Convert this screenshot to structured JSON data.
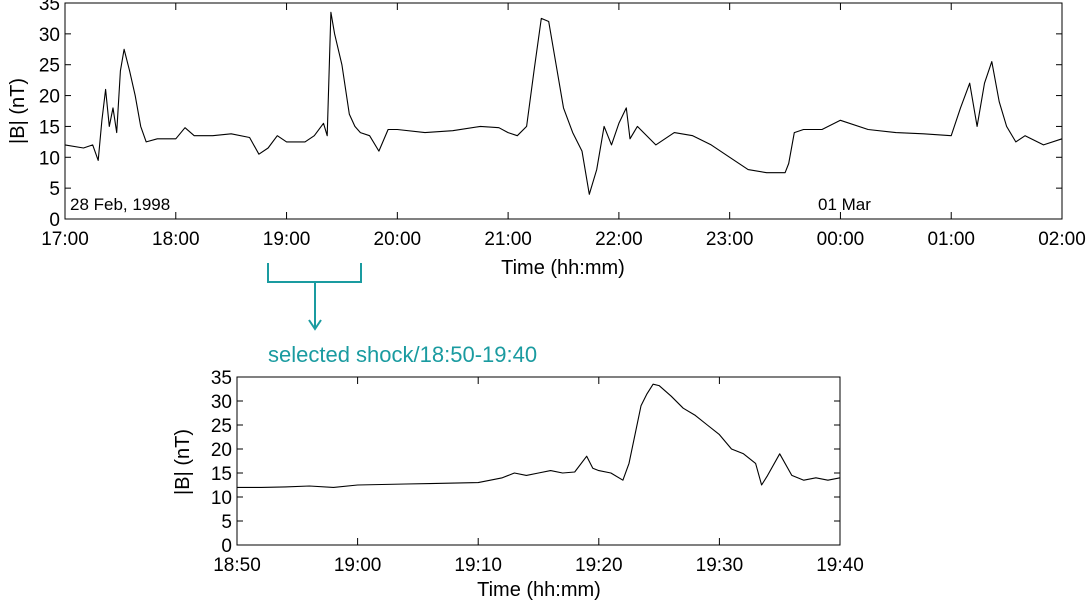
{
  "accent_color": "#1a9ba0",
  "callout": {
    "text": "selected shock/18:50-19:40"
  },
  "chart_data": [
    {
      "type": "line",
      "xlabel": "Time (hh:mm)",
      "ylabel": "|B| (nT)",
      "ylim": [
        0,
        35
      ],
      "xlim": [
        "17:00",
        "02:00"
      ],
      "yticks": [
        0,
        5,
        10,
        15,
        20,
        25,
        30,
        35
      ],
      "xticks": [
        "17:00",
        "18:00",
        "19:00",
        "20:00",
        "21:00",
        "22:00",
        "23:00",
        "00:00",
        "01:00",
        "02:00"
      ],
      "annotations": [
        "28 Feb, 1998",
        "01 Mar"
      ],
      "grid": false,
      "series": [
        {
          "points": [
            [
              "17:00",
              12
            ],
            [
              "17:10",
              11.5
            ],
            [
              "17:15",
              12
            ],
            [
              "17:18",
              9.5
            ],
            [
              "17:20",
              16
            ],
            [
              "17:22",
              21
            ],
            [
              "17:24",
              15
            ],
            [
              "17:26",
              18
            ],
            [
              "17:28",
              14
            ],
            [
              "17:30",
              24
            ],
            [
              "17:32",
              27.5
            ],
            [
              "17:35",
              24
            ],
            [
              "17:38",
              20
            ],
            [
              "17:41",
              15
            ],
            [
              "17:44",
              12.5
            ],
            [
              "17:50",
              13
            ],
            [
              "18:00",
              13
            ],
            [
              "18:05",
              14.8
            ],
            [
              "18:10",
              13.5
            ],
            [
              "18:20",
              13.5
            ],
            [
              "18:30",
              13.8
            ],
            [
              "18:40",
              13.2
            ],
            [
              "18:45",
              10.5
            ],
            [
              "18:50",
              11.5
            ],
            [
              "18:55",
              13.5
            ],
            [
              "19:00",
              12.5
            ],
            [
              "19:10",
              12.5
            ],
            [
              "19:15",
              13.5
            ],
            [
              "19:20",
              15.5
            ],
            [
              "19:22",
              13.5
            ],
            [
              "19:24",
              33.5
            ],
            [
              "19:26",
              30
            ],
            [
              "19:30",
              25
            ],
            [
              "19:34",
              17
            ],
            [
              "19:37",
              15
            ],
            [
              "19:40",
              14
            ],
            [
              "19:45",
              13.5
            ],
            [
              "19:50",
              11
            ],
            [
              "19:55",
              14.5
            ],
            [
              "20:00",
              14.5
            ],
            [
              "20:15",
              14
            ],
            [
              "20:30",
              14.3
            ],
            [
              "20:45",
              15
            ],
            [
              "20:55",
              14.8
            ],
            [
              "21:00",
              14
            ],
            [
              "21:05",
              13.5
            ],
            [
              "21:10",
              15
            ],
            [
              "21:14",
              24
            ],
            [
              "21:18",
              32.5
            ],
            [
              "21:22",
              32
            ],
            [
              "21:26",
              25
            ],
            [
              "21:30",
              18
            ],
            [
              "21:35",
              14
            ],
            [
              "21:40",
              11
            ],
            [
              "21:44",
              4
            ],
            [
              "21:48",
              8
            ],
            [
              "21:52",
              15
            ],
            [
              "21:56",
              12
            ],
            [
              "22:00",
              15.5
            ],
            [
              "22:04",
              18
            ],
            [
              "22:06",
              13
            ],
            [
              "22:10",
              15
            ],
            [
              "22:20",
              12
            ],
            [
              "22:30",
              14
            ],
            [
              "22:40",
              13.5
            ],
            [
              "22:50",
              12
            ],
            [
              "23:00",
              10
            ],
            [
              "23:10",
              8
            ],
            [
              "23:20",
              7.5
            ],
            [
              "23:30",
              7.5
            ],
            [
              "23:32",
              9
            ],
            [
              "23:35",
              14
            ],
            [
              "23:40",
              14.5
            ],
            [
              "23:50",
              14.5
            ],
            [
              "00:00",
              16
            ],
            [
              "00:15",
              14.5
            ],
            [
              "00:30",
              14
            ],
            [
              "00:45",
              13.8
            ],
            [
              "01:00",
              13.5
            ],
            [
              "01:05",
              18
            ],
            [
              "01:10",
              22
            ],
            [
              "01:14",
              15
            ],
            [
              "01:18",
              22
            ],
            [
              "01:22",
              25.5
            ],
            [
              "01:26",
              19
            ],
            [
              "01:30",
              15
            ],
            [
              "01:35",
              12.5
            ],
            [
              "01:40",
              13.5
            ],
            [
              "01:50",
              12
            ],
            [
              "02:00",
              13
            ]
          ]
        }
      ]
    },
    {
      "type": "line",
      "xlabel": "Time (hh:mm)",
      "ylabel": "|B| (nT)",
      "ylim": [
        0,
        35
      ],
      "xlim": [
        "18:50",
        "19:40"
      ],
      "yticks": [
        0,
        5,
        10,
        15,
        20,
        25,
        30,
        35
      ],
      "xticks": [
        "18:50",
        "19:00",
        "19:10",
        "19:20",
        "19:30",
        "19:40"
      ],
      "grid": false,
      "series": [
        {
          "points": [
            [
              "18:50",
              12
            ],
            [
              "18:52",
              12
            ],
            [
              "18:54",
              12.1
            ],
            [
              "18:56",
              12.3
            ],
            [
              "18:58",
              12
            ],
            [
              "19:00",
              12.5
            ],
            [
              "19:02",
              12.6
            ],
            [
              "19:04",
              12.7
            ],
            [
              "19:06",
              12.8
            ],
            [
              "19:08",
              12.9
            ],
            [
              "19:10",
              13
            ],
            [
              "19:11",
              13.5
            ],
            [
              "19:12",
              14
            ],
            [
              "19:13",
              15
            ],
            [
              "19:14",
              14.5
            ],
            [
              "19:15",
              15
            ],
            [
              "19:16",
              15.5
            ],
            [
              "19:17",
              15
            ],
            [
              "19:18",
              15.2
            ],
            [
              "19:19",
              18.5
            ],
            [
              "19:19.5",
              16
            ],
            [
              "19:20",
              15.5
            ],
            [
              "19:21",
              15
            ],
            [
              "19:22",
              13.5
            ],
            [
              "19:22.5",
              17
            ],
            [
              "19:23",
              23
            ],
            [
              "19:23.5",
              29
            ],
            [
              "19:24",
              31.5
            ],
            [
              "19:24.5",
              33.5
            ],
            [
              "19:25",
              33.2
            ],
            [
              "19:26",
              31
            ],
            [
              "19:27",
              28.5
            ],
            [
              "19:28",
              27
            ],
            [
              "19:29",
              25
            ],
            [
              "19:30",
              23
            ],
            [
              "19:31",
              20
            ],
            [
              "19:32",
              19
            ],
            [
              "19:33",
              17
            ],
            [
              "19:33.5",
              12.5
            ],
            [
              "19:34",
              14.5
            ],
            [
              "19:35",
              19
            ],
            [
              "19:36",
              14.5
            ],
            [
              "19:37",
              13.5
            ],
            [
              "19:38",
              14
            ],
            [
              "19:39",
              13.5
            ],
            [
              "19:40",
              14
            ]
          ]
        }
      ]
    }
  ]
}
